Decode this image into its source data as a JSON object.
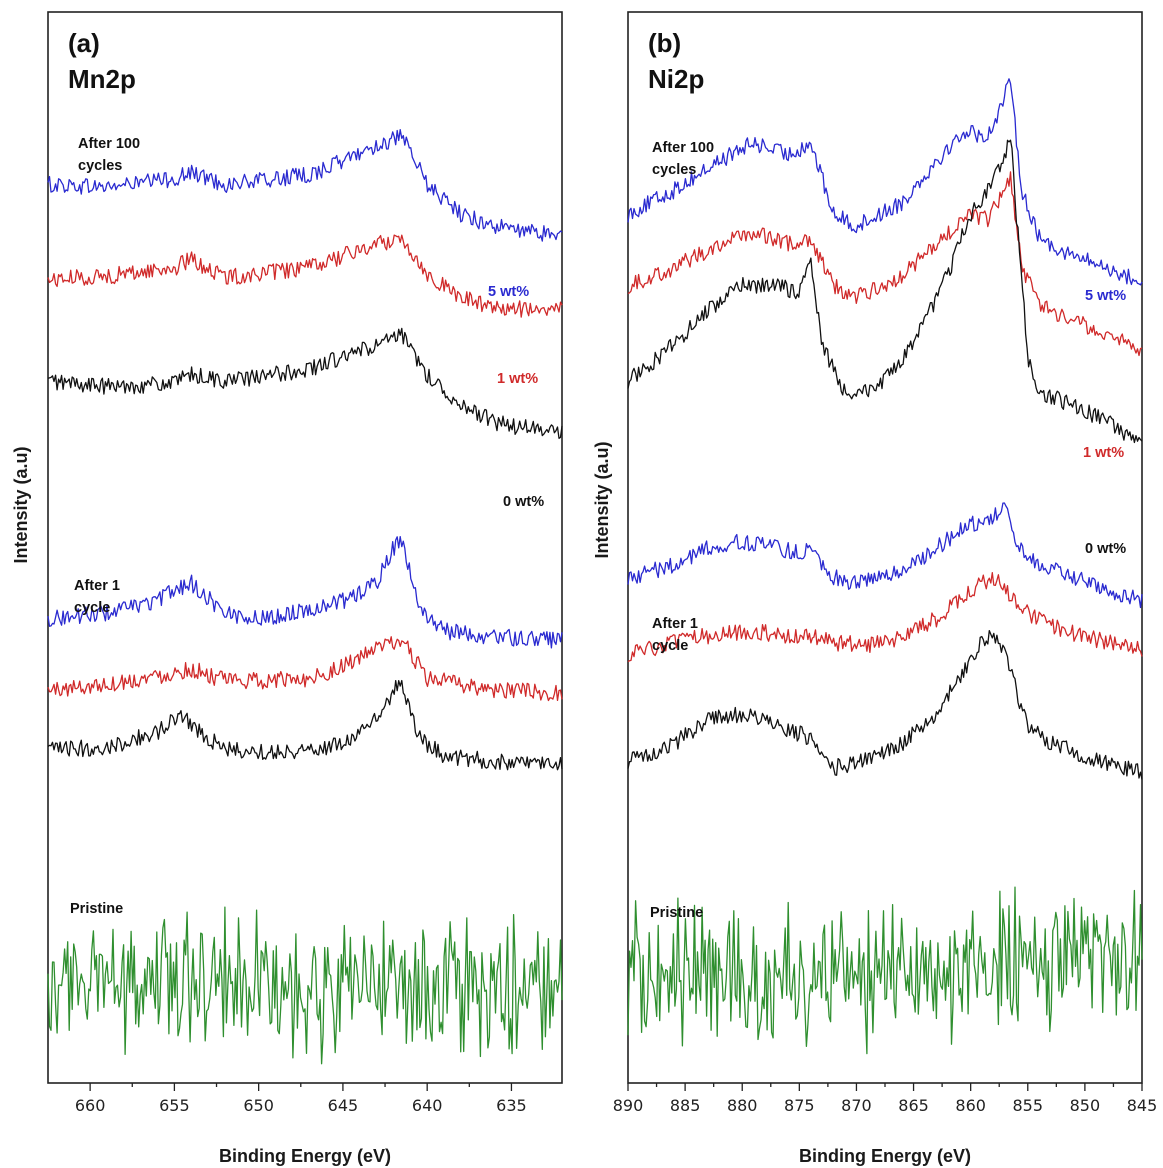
{
  "chart_data": [
    {
      "type": "line",
      "panel_label": "(a)",
      "title": "Mn2p",
      "xlabel": "Binding Energy (eV)",
      "ylabel": "Intensity (a.u)",
      "xlim": [
        662.5,
        632
      ],
      "x_ticks": [
        660,
        655,
        650,
        645,
        640,
        635
      ],
      "y_ticks_shown": false,
      "annotations": {
        "after100": [
          "After 100",
          "cycles"
        ],
        "after1": [
          "After 1",
          "cycle"
        ],
        "pristine": "Pristine",
        "wt5": "5 wt%",
        "wt1": "1 wt%",
        "wt0": "0 wt%"
      },
      "series": [
        {
          "group": "After 100 cycles",
          "name": "5 wt%",
          "color": "#2a2ad0",
          "x": [
            662.5,
            659,
            655,
            654,
            652,
            650,
            647,
            645,
            643,
            641.5,
            640,
            638,
            636,
            634,
            632
          ],
          "y": [
            7.55,
            7.53,
            7.6,
            7.65,
            7.55,
            7.58,
            7.63,
            7.75,
            7.88,
            7.95,
            7.55,
            7.3,
            7.2,
            7.15,
            7.13
          ]
        },
        {
          "group": "After 100 cycles",
          "name": "1 wt%",
          "color": "#d02a2a",
          "x": [
            662.5,
            659,
            655,
            654,
            652,
            650,
            647,
            645,
            643,
            641.5,
            640,
            638,
            636,
            634,
            632
          ],
          "y": [
            6.75,
            6.78,
            6.85,
            6.92,
            6.77,
            6.8,
            6.85,
            6.95,
            7.05,
            7.1,
            6.8,
            6.6,
            6.52,
            6.5,
            6.5
          ]
        },
        {
          "group": "After 100 cycles",
          "name": "0 wt%",
          "color": "#111111",
          "x": [
            662.5,
            659,
            655,
            654,
            652,
            650,
            647,
            645,
            643,
            641.5,
            640,
            638,
            636,
            634,
            632
          ],
          "y": [
            5.9,
            5.85,
            5.88,
            5.95,
            5.9,
            5.93,
            6.0,
            6.1,
            6.2,
            6.28,
            5.95,
            5.7,
            5.55,
            5.5,
            5.47
          ]
        },
        {
          "group": "After 1 cycle",
          "name": "5 wt%",
          "color": "#2a2ad0",
          "x": [
            662.5,
            659,
            656,
            655,
            654,
            652,
            650,
            648,
            645,
            643,
            642,
            641.5,
            640.5,
            639,
            636,
            632
          ],
          "y": [
            3.9,
            3.95,
            4.05,
            4.15,
            4.2,
            3.95,
            3.9,
            3.95,
            4.05,
            4.2,
            4.5,
            4.55,
            4.0,
            3.8,
            3.75,
            3.72
          ]
        },
        {
          "group": "After 1 cycle",
          "name": "1 wt%",
          "color": "#d02a2a",
          "x": [
            662.5,
            659,
            656,
            654,
            652,
            650,
            647,
            645,
            643,
            641.5,
            640,
            638,
            636,
            632
          ],
          "y": [
            3.3,
            3.35,
            3.42,
            3.48,
            3.38,
            3.38,
            3.4,
            3.5,
            3.65,
            3.72,
            3.4,
            3.35,
            3.3,
            3.28
          ]
        },
        {
          "group": "After 1 cycle",
          "name": "0 wt%",
          "color": "#111111",
          "x": [
            662.5,
            659,
            656,
            654.5,
            653.5,
            652,
            650,
            647,
            645,
            643,
            642,
            641.5,
            640.5,
            639,
            636,
            632
          ],
          "y": [
            2.8,
            2.82,
            2.95,
            3.1,
            2.95,
            2.8,
            2.78,
            2.8,
            2.85,
            3.05,
            3.3,
            3.35,
            2.9,
            2.75,
            2.7,
            2.68
          ]
        },
        {
          "group": "Pristine",
          "name": "Pristine",
          "color": "#2f8f2f",
          "x": [
            662.5,
            650,
            632
          ],
          "y": [
            0.8,
            0.8,
            0.82
          ]
        }
      ]
    },
    {
      "type": "line",
      "panel_label": "(b)",
      "title": "Ni2p",
      "xlabel": "Binding Energy (eV)",
      "ylabel": "Intensity (a.u)",
      "xlim": [
        890,
        845
      ],
      "x_ticks": [
        890,
        885,
        880,
        875,
        870,
        865,
        860,
        855,
        850,
        845
      ],
      "y_ticks_shown": false,
      "annotations": {
        "after100": [
          "After 100",
          "cycles"
        ],
        "after1": [
          "After 1",
          "cycle"
        ],
        "pristine": "Pristine",
        "wt5": "5 wt%",
        "wt1": "1 wt%",
        "wt0": "0 wt%"
      },
      "series": [
        {
          "group": "After 100 cycles",
          "name": "5 wt%",
          "color": "#2a2ad0",
          "x": [
            890,
            886,
            882,
            879,
            876,
            874,
            872,
            870,
            866,
            863,
            860.5,
            858.5,
            857,
            856.5,
            855.5,
            854,
            851,
            848,
            845
          ],
          "y": [
            7.3,
            7.5,
            7.75,
            7.9,
            7.8,
            7.9,
            7.3,
            7.2,
            7.4,
            7.75,
            8.0,
            7.95,
            8.3,
            8.4,
            7.5,
            7.1,
            6.95,
            6.85,
            6.72
          ]
        },
        {
          "group": "After 100 cycles",
          "name": "1 wt%",
          "color": "#d02a2a",
          "x": [
            890,
            886,
            882,
            879,
            876,
            874,
            872,
            870,
            866,
            863,
            860,
            858.5,
            857,
            856.5,
            855.5,
            854,
            851,
            848,
            845
          ],
          "y": [
            6.7,
            6.85,
            7.05,
            7.15,
            7.05,
            7.1,
            6.7,
            6.6,
            6.78,
            7.05,
            7.3,
            7.25,
            7.5,
            7.6,
            6.85,
            6.55,
            6.4,
            6.3,
            6.15
          ]
        },
        {
          "group": "After 100 cycles",
          "name": "0 wt%",
          "color": "#111111",
          "x": [
            890,
            886,
            883,
            880,
            877,
            875,
            874,
            873,
            871,
            868,
            865,
            862,
            860,
            858.5,
            857,
            856.5,
            856,
            855,
            854,
            851,
            848,
            845
          ],
          "y": [
            5.9,
            6.2,
            6.5,
            6.7,
            6.7,
            6.65,
            6.9,
            6.2,
            5.8,
            5.85,
            6.2,
            6.8,
            7.3,
            7.5,
            7.8,
            7.95,
            7.3,
            6.1,
            5.8,
            5.7,
            5.55,
            5.35
          ]
        },
        {
          "group": "After 1 cycle",
          "name": "5 wt%",
          "color": "#2a2ad0",
          "x": [
            890,
            886,
            883,
            880,
            877,
            875,
            874,
            872,
            870,
            866,
            863,
            860,
            858,
            857,
            856,
            854,
            851,
            848,
            845
          ],
          "y": [
            4.25,
            4.35,
            4.5,
            4.55,
            4.5,
            4.45,
            4.5,
            4.25,
            4.2,
            4.3,
            4.5,
            4.7,
            4.75,
            4.85,
            4.5,
            4.35,
            4.25,
            4.15,
            4.05
          ]
        },
        {
          "group": "After 1 cycle",
          "name": "1 wt%",
          "color": "#d02a2a",
          "x": [
            890,
            886,
            882,
            879,
            876,
            874,
            872,
            869,
            866,
            863,
            861,
            859,
            858,
            857,
            855,
            853,
            850,
            845
          ],
          "y": [
            3.6,
            3.7,
            3.78,
            3.8,
            3.75,
            3.75,
            3.7,
            3.68,
            3.75,
            3.9,
            4.05,
            4.2,
            4.25,
            4.15,
            3.95,
            3.85,
            3.75,
            3.65
          ]
        },
        {
          "group": "After 1 cycle",
          "name": "0 wt%",
          "color": "#111111",
          "x": [
            890,
            886,
            883,
            880,
            877,
            874,
            872,
            870,
            866,
            863,
            861,
            859,
            858,
            857,
            855,
            853,
            850,
            845
          ],
          "y": [
            2.7,
            2.85,
            3.05,
            3.1,
            3.0,
            2.9,
            2.65,
            2.7,
            2.85,
            3.1,
            3.4,
            3.7,
            3.75,
            3.6,
            3.0,
            2.85,
            2.75,
            2.6
          ]
        },
        {
          "group": "Pristine",
          "name": "Pristine",
          "color": "#2f8f2f",
          "x": [
            890,
            870,
            860,
            845
          ],
          "y": [
            0.9,
            0.9,
            0.95,
            1.1
          ]
        }
      ]
    }
  ]
}
